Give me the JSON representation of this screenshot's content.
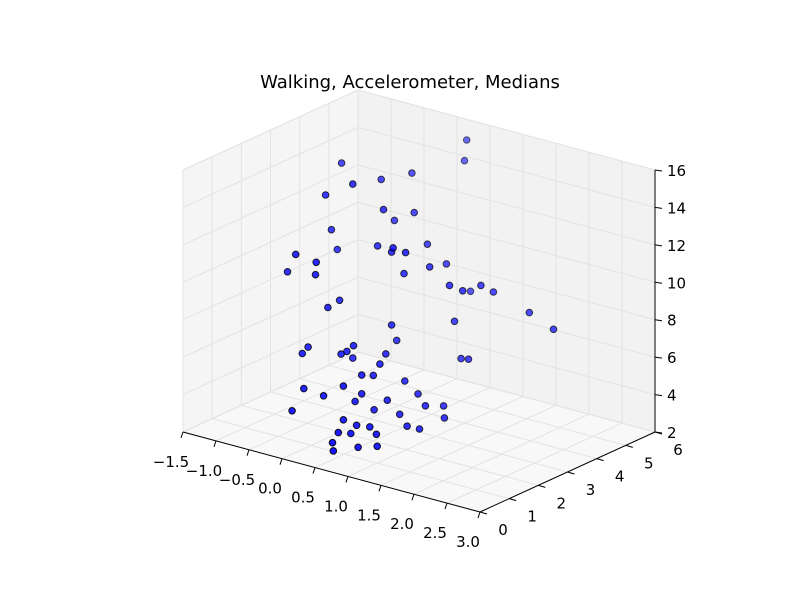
{
  "chart_data": {
    "type": "scatter3d",
    "title": "Walking, Accelerometer, Medians",
    "xlabel": "",
    "ylabel": "",
    "zlabel": "",
    "xlim": [
      -1.5,
      3.0
    ],
    "ylim": [
      0,
      6
    ],
    "zlim": [
      2,
      16
    ],
    "x_ticks": [
      "−1.5",
      "−1.0",
      "−0.5",
      "0.0",
      "0.5",
      "1.0",
      "1.5",
      "2.0",
      "2.5",
      "3.0"
    ],
    "y_ticks": [
      "0",
      "1",
      "2",
      "3",
      "4",
      "5",
      "6"
    ],
    "z_ticks": [
      "2",
      "4",
      "6",
      "8",
      "10",
      "12",
      "14",
      "16"
    ],
    "grid": true,
    "marker_color": "#0000ff",
    "marker_edge_color": "#000000",
    "points": [
      {
        "x": 0.1,
        "y": 2.2,
        "z": 15.2
      },
      {
        "x": 0.5,
        "y": 5.2,
        "z": 15.8
      },
      {
        "x": 0.6,
        "y": 4.9,
        "z": 15.0
      },
      {
        "x": -0.6,
        "y": 3.4,
        "z": 14.8
      },
      {
        "x": 0.2,
        "y": 4.0,
        "z": 14.6
      },
      {
        "x": 0.0,
        "y": 3.4,
        "z": 14.5
      },
      {
        "x": -0.4,
        "y": 2.4,
        "z": 14.0
      },
      {
        "x": 0.3,
        "y": 2.8,
        "z": 13.6
      },
      {
        "x": 0.5,
        "y": 3.4,
        "z": 13.2
      },
      {
        "x": 0.2,
        "y": 3.4,
        "z": 12.5
      },
      {
        "x": 0.8,
        "y": 2.0,
        "z": 12.6
      },
      {
        "x": -0.4,
        "y": 2.6,
        "z": 12.0
      },
      {
        "x": 0.3,
        "y": 2.6,
        "z": 11.8
      },
      {
        "x": 0.6,
        "y": 2.4,
        "z": 11.9
      },
      {
        "x": 0.9,
        "y": 2.2,
        "z": 12.3
      },
      {
        "x": 0.7,
        "y": 3.4,
        "z": 11.7
      },
      {
        "x": 0.9,
        "y": 3.6,
        "z": 10.7
      },
      {
        "x": 1.0,
        "y": 2.8,
        "z": 11.2
      },
      {
        "x": -0.5,
        "y": 1.6,
        "z": 11.3
      },
      {
        "x": -0.4,
        "y": 2.8,
        "z": 10.8
      },
      {
        "x": -0.2,
        "y": 1.6,
        "z": 10.5
      },
      {
        "x": -0.1,
        "y": 1.4,
        "z": 11.4
      },
      {
        "x": 0.7,
        "y": 2.6,
        "z": 10.7
      },
      {
        "x": 1.3,
        "y": 2.8,
        "z": 10.5
      },
      {
        "x": 1.5,
        "y": 2.8,
        "z": 10.4
      },
      {
        "x": 1.6,
        "y": 3.2,
        "z": 10.5
      },
      {
        "x": 1.7,
        "y": 3.4,
        "z": 10.1
      },
      {
        "x": 2.2,
        "y": 3.5,
        "z": 9.4
      },
      {
        "x": 2.7,
        "y": 3.2,
        "z": 9.2
      },
      {
        "x": -0.8,
        "y": 2.0,
        "z": 9.8
      },
      {
        "x": -0.1,
        "y": 2.2,
        "z": 8.8
      },
      {
        "x": -0.1,
        "y": 1.8,
        "z": 8.7
      },
      {
        "x": 1.0,
        "y": 4.2,
        "z": 8.9
      },
      {
        "x": 0.6,
        "y": 2.4,
        "z": 8.0
      },
      {
        "x": 1.2,
        "y": 3.2,
        "z": 8.2
      },
      {
        "x": 0.2,
        "y": 2.0,
        "z": 6.8
      },
      {
        "x": 0.6,
        "y": 2.2,
        "z": 6.6
      },
      {
        "x": 0.1,
        "y": 1.8,
        "z": 6.4
      },
      {
        "x": 0.5,
        "y": 2.8,
        "z": 6.8
      },
      {
        "x": -0.4,
        "y": 1.8,
        "z": 6.3
      },
      {
        "x": -0.4,
        "y": 1.6,
        "z": 6.1
      },
      {
        "x": 0.1,
        "y": 2.0,
        "z": 6.4
      },
      {
        "x": 0.6,
        "y": 2.0,
        "z": 6.2
      },
      {
        "x": 1.3,
        "y": 3.2,
        "z": 6.3
      },
      {
        "x": 1.5,
        "y": 3.0,
        "z": 6.6
      },
      {
        "x": 0.5,
        "y": 1.6,
        "z": 5.8
      },
      {
        "x": 0.1,
        "y": 2.2,
        "z": 5.9
      },
      {
        "x": 0.5,
        "y": 2.0,
        "z": 5.5
      },
      {
        "x": 0.4,
        "y": 1.2,
        "z": 5.4
      },
      {
        "x": 0.8,
        "y": 2.4,
        "z": 5.2
      },
      {
        "x": 0.1,
        "y": 1.2,
        "z": 4.6
      },
      {
        "x": -0.2,
        "y": 1.2,
        "z": 4.7
      },
      {
        "x": 0.5,
        "y": 1.6,
        "z": 4.8
      },
      {
        "x": 0.8,
        "y": 1.8,
        "z": 4.6
      },
      {
        "x": 1.0,
        "y": 2.4,
        "z": 4.7
      },
      {
        "x": 0.4,
        "y": 1.6,
        "z": 4.3
      },
      {
        "x": 1.2,
        "y": 2.2,
        "z": 4.4
      },
      {
        "x": 1.3,
        "y": 2.6,
        "z": 4.2
      },
      {
        "x": 0.6,
        "y": 1.8,
        "z": 3.9
      },
      {
        "x": 0.9,
        "y": 2.0,
        "z": 3.8
      },
      {
        "x": 1.4,
        "y": 2.4,
        "z": 3.8
      },
      {
        "x": -0.2,
        "y": 0.8,
        "z": 3.8
      },
      {
        "x": 0.4,
        "y": 1.2,
        "z": 3.6
      },
      {
        "x": 0.6,
        "y": 1.2,
        "z": 3.5
      },
      {
        "x": 0.8,
        "y": 1.2,
        "z": 3.6
      },
      {
        "x": 1.1,
        "y": 1.8,
        "z": 3.5
      },
      {
        "x": 0.5,
        "y": 0.8,
        "z": 3.3
      },
      {
        "x": 0.6,
        "y": 1.0,
        "z": 3.2
      },
      {
        "x": 0.9,
        "y": 1.2,
        "z": 3.3
      },
      {
        "x": 1.2,
        "y": 2.0,
        "z": 3.3
      },
      {
        "x": 0.5,
        "y": 0.6,
        "z": 2.9
      },
      {
        "x": 0.6,
        "y": 0.4,
        "z": 2.7
      },
      {
        "x": 0.8,
        "y": 0.8,
        "z": 2.8
      },
      {
        "x": 1.0,
        "y": 1.0,
        "z": 2.9
      }
    ]
  }
}
